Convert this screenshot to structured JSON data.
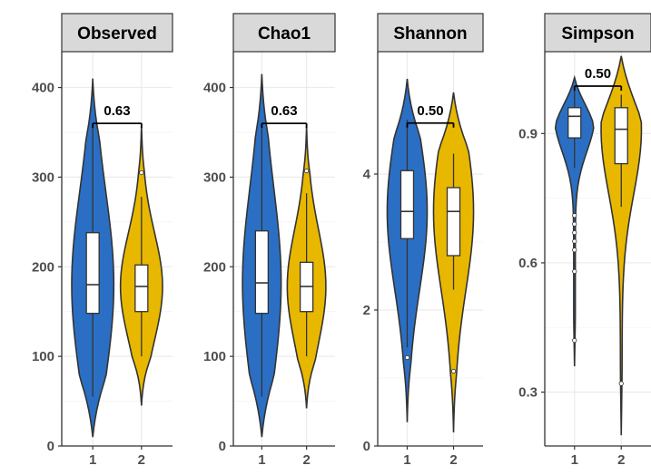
{
  "chart_data": [
    {
      "type": "violin",
      "title": "Observed",
      "categories": [
        "1",
        "2"
      ],
      "ylim": [
        0,
        440
      ],
      "yticks": [
        0,
        100,
        200,
        300,
        400
      ],
      "grid": true,
      "pvalue": "0.63",
      "series": [
        {
          "color": "#2b6fc4",
          "min": 10,
          "max": 410,
          "q1": 148,
          "median": 180,
          "q3": 238,
          "whisker_low": 55,
          "whisker_high": 355,
          "outliers": []
        },
        {
          "color": "#e8b800",
          "min": 45,
          "max": 360,
          "q1": 150,
          "median": 178,
          "q3": 202,
          "whisker_low": 100,
          "whisker_high": 278,
          "outliers": [
            305
          ]
        }
      ]
    },
    {
      "type": "violin",
      "title": "Chao1",
      "categories": [
        "1",
        "2"
      ],
      "ylim": [
        0,
        440
      ],
      "yticks": [
        0,
        100,
        200,
        300,
        400
      ],
      "grid": true,
      "pvalue": "0.63",
      "series": [
        {
          "color": "#2b6fc4",
          "min": 10,
          "max": 415,
          "q1": 148,
          "median": 182,
          "q3": 240,
          "whisker_low": 55,
          "whisker_high": 355,
          "outliers": []
        },
        {
          "color": "#e8b800",
          "min": 42,
          "max": 358,
          "q1": 150,
          "median": 178,
          "q3": 205,
          "whisker_low": 100,
          "whisker_high": 282,
          "outliers": [
            307
          ]
        }
      ]
    },
    {
      "type": "violin",
      "title": "Shannon",
      "categories": [
        "1",
        "2"
      ],
      "ylim": [
        0,
        5.8
      ],
      "yticks": [
        0,
        2,
        4
      ],
      "grid": true,
      "pvalue": "0.50",
      "series": [
        {
          "color": "#2b6fc4",
          "min": 0.35,
          "max": 5.4,
          "q1": 3.05,
          "median": 3.45,
          "q3": 4.05,
          "whisker_low": 1.45,
          "whisker_high": 4.8,
          "outliers": [
            1.3
          ]
        },
        {
          "color": "#e8b800",
          "min": 0.2,
          "max": 5.2,
          "q1": 2.8,
          "median": 3.45,
          "q3": 3.8,
          "whisker_low": 2.3,
          "whisker_high": 4.3,
          "outliers": [
            1.1
          ]
        }
      ]
    },
    {
      "type": "violin",
      "title": "Simpson",
      "categories": [
        "1",
        "2"
      ],
      "ylim": [
        0.175,
        1.09
      ],
      "yticks": [
        0.3,
        0.6,
        0.9
      ],
      "grid": true,
      "pvalue": "0.50",
      "series": [
        {
          "color": "#2b6fc4",
          "min": 0.36,
          "max": 1.03,
          "q1": 0.89,
          "median": 0.94,
          "q3": 0.96,
          "whisker_low": 0.82,
          "whisker_high": 1.0,
          "outliers": [
            0.71,
            0.69,
            0.67,
            0.65,
            0.63,
            0.58,
            0.42
          ]
        },
        {
          "color": "#e8b800",
          "min": 0.2,
          "max": 1.08,
          "q1": 0.83,
          "median": 0.91,
          "q3": 0.96,
          "whisker_low": 0.73,
          "whisker_high": 0.99,
          "outliers": [
            0.32
          ]
        }
      ]
    }
  ]
}
